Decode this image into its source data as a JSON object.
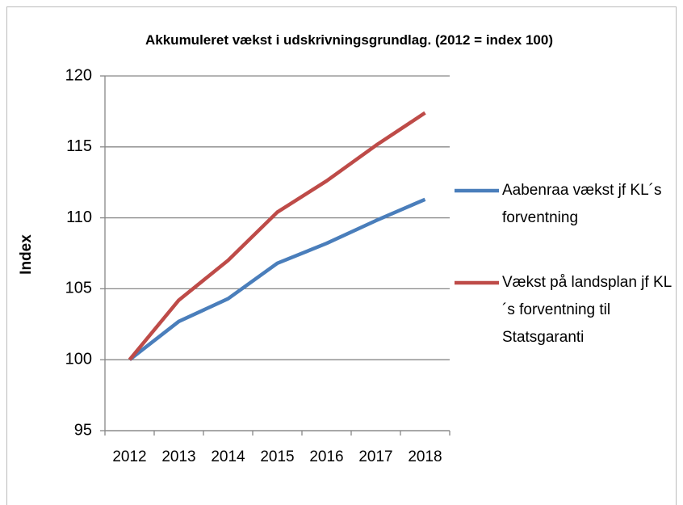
{
  "chart_data": {
    "type": "line",
    "title": "Akkumuleret vækst  i udskrivningsgrundlag. (2012 = index 100)",
    "y_label": "Index",
    "categories": [
      "2012",
      "2013",
      "2014",
      "2015",
      "2016",
      "2017",
      "2018"
    ],
    "series": [
      {
        "name": "Aabenraa vækst jf KL´s forventning",
        "color": "#4a7ebb",
        "values": [
          100,
          102.7,
          104.3,
          106.8,
          108.2,
          109.8,
          111.3
        ]
      },
      {
        "name": "Vækst på landsplan jf KL´s forventning til Statsgaranti",
        "color": "#be4b48",
        "values": [
          100,
          104.2,
          107.0,
          110.4,
          112.6,
          115.1,
          117.4
        ]
      }
    ],
    "ylim": [
      95,
      120
    ],
    "yticks": [
      95,
      100,
      105,
      110,
      115,
      120
    ],
    "grid": true,
    "legend": "right"
  }
}
